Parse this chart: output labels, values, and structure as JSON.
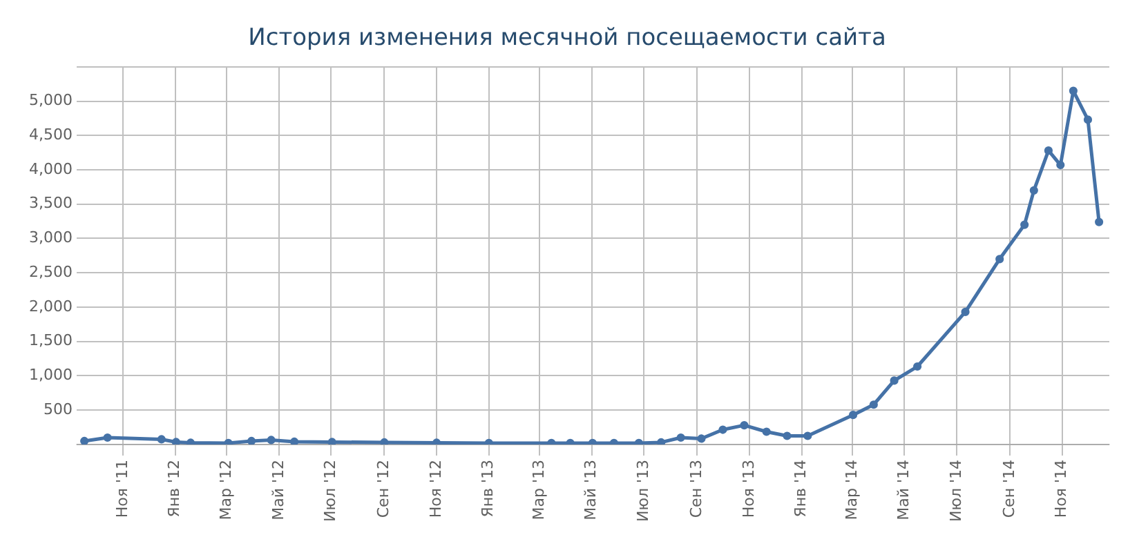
{
  "chart_data": {
    "type": "line",
    "title": "История изменения месячной посещаемости сайта",
    "x": [
      "2011-09-17",
      "2011-10-14",
      "2011-12-16",
      "2012-01-02",
      "2012-01-19",
      "2012-03-03",
      "2012-03-30",
      "2012-04-22",
      "2012-05-19",
      "2012-07-02",
      "2012-09-01",
      "2012-11-01",
      "2013-01-01",
      "2013-03-15",
      "2013-04-06",
      "2013-05-02",
      "2013-05-27",
      "2013-06-25",
      "2013-07-21",
      "2013-08-13",
      "2013-09-06",
      "2013-10-01",
      "2013-10-26",
      "2013-11-21",
      "2013-12-15",
      "2014-01-08",
      "2014-03-02",
      "2014-03-26",
      "2014-04-19",
      "2014-05-16",
      "2014-07-11",
      "2014-08-20",
      "2014-09-18",
      "2014-09-29",
      "2014-10-16",
      "2014-10-30",
      "2014-11-14",
      "2014-12-01",
      "2014-12-14"
    ],
    "series": [
      {
        "color": "#4572a7",
        "values": [
          50,
          100,
          75,
          35,
          25,
          20,
          50,
          65,
          40,
          35,
          30,
          25,
          20,
          20,
          20,
          20,
          20,
          20,
          30,
          100,
          85,
          215,
          280,
          185,
          125,
          125,
          430,
          580,
          930,
          1135,
          1930,
          2700,
          3200,
          3700,
          4280,
          4070,
          5150,
          4730,
          3240
        ]
      }
    ],
    "xlim": [
      "2011-09-08",
      "2014-12-26"
    ],
    "xticks": [
      {
        "value": "2011-11-01",
        "label": "Ноя '11"
      },
      {
        "value": "2012-01-01",
        "label": "Янв '12"
      },
      {
        "value": "2012-03-01",
        "label": "Мар '12"
      },
      {
        "value": "2012-05-01",
        "label": "Май '12"
      },
      {
        "value": "2012-07-01",
        "label": "Июл '12"
      },
      {
        "value": "2012-09-01",
        "label": "Сен '12"
      },
      {
        "value": "2012-11-01",
        "label": "Ноя '12"
      },
      {
        "value": "2013-01-01",
        "label": "Янв '13"
      },
      {
        "value": "2013-03-01",
        "label": "Мар '13"
      },
      {
        "value": "2013-05-01",
        "label": "Май '13"
      },
      {
        "value": "2013-07-01",
        "label": "Июл '13"
      },
      {
        "value": "2013-09-01",
        "label": "Сен '13"
      },
      {
        "value": "2013-11-01",
        "label": "Ноя '13"
      },
      {
        "value": "2014-01-01",
        "label": "Янв '14"
      },
      {
        "value": "2014-03-01",
        "label": "Мар '14"
      },
      {
        "value": "2014-05-01",
        "label": "Май '14"
      },
      {
        "value": "2014-07-01",
        "label": "Июл '14"
      },
      {
        "value": "2014-09-01",
        "label": "Сен '14"
      },
      {
        "value": "2014-11-01",
        "label": "Ноя '14"
      }
    ],
    "ylim": [
      0,
      5500
    ],
    "yticks": [
      {
        "value": 0,
        "label": null
      },
      {
        "value": 500,
        "label": "500"
      },
      {
        "value": 1000,
        "label": "1,000"
      },
      {
        "value": 1500,
        "label": "1,500"
      },
      {
        "value": 2000,
        "label": "2,000"
      },
      {
        "value": 2500,
        "label": "2,500"
      },
      {
        "value": 3000,
        "label": "3,000"
      },
      {
        "value": 3500,
        "label": "3,500"
      },
      {
        "value": 4000,
        "label": "4,000"
      },
      {
        "value": 4500,
        "label": "4,500"
      },
      {
        "value": 5000,
        "label": "5,000"
      },
      {
        "value": 5500,
        "label": null
      }
    ],
    "grid": true,
    "marker": "circle",
    "line_style": "solid"
  }
}
